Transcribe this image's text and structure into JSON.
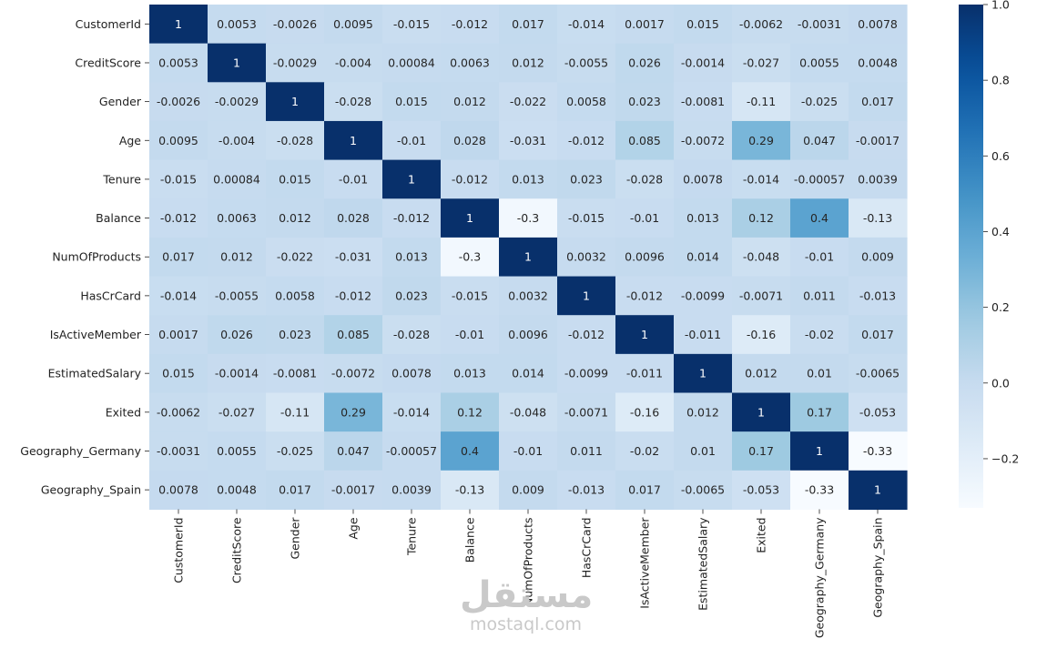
{
  "chart_data": {
    "type": "heatmap",
    "labels": [
      "CustomerId",
      "CreditScore",
      "Gender",
      "Age",
      "Tenure",
      "Balance",
      "NumOfProducts",
      "HasCrCard",
      "IsActiveMember",
      "EstimatedSalary",
      "Exited",
      "Geography_Germany",
      "Geography_Spain"
    ],
    "values": [
      [
        "1",
        "0.0053",
        "-0.0026",
        "0.0095",
        "-0.015",
        "-0.012",
        "0.017",
        "-0.014",
        "0.0017",
        "0.015",
        "-0.0062",
        "-0.0031",
        "0.0078"
      ],
      [
        "0.0053",
        "1",
        "-0.0029",
        "-0.004",
        "0.00084",
        "0.0063",
        "0.012",
        "-0.0055",
        "0.026",
        "-0.0014",
        "-0.027",
        "0.0055",
        "0.0048"
      ],
      [
        "-0.0026",
        "-0.0029",
        "1",
        "-0.028",
        "0.015",
        "0.012",
        "-0.022",
        "0.0058",
        "0.023",
        "-0.0081",
        "-0.11",
        "-0.025",
        "0.017"
      ],
      [
        "0.0095",
        "-0.004",
        "-0.028",
        "1",
        "-0.01",
        "0.028",
        "-0.031",
        "-0.012",
        "0.085",
        "-0.0072",
        "0.29",
        "0.047",
        "-0.0017"
      ],
      [
        "-0.015",
        "0.00084",
        "0.015",
        "-0.01",
        "1",
        "-0.012",
        "0.013",
        "0.023",
        "-0.028",
        "0.0078",
        "-0.014",
        "-0.00057",
        "0.0039"
      ],
      [
        "-0.012",
        "0.0063",
        "0.012",
        "0.028",
        "-0.012",
        "1",
        "-0.3",
        "-0.015",
        "-0.01",
        "0.013",
        "0.12",
        "0.4",
        "-0.13"
      ],
      [
        "0.017",
        "0.012",
        "-0.022",
        "-0.031",
        "0.013",
        "-0.3",
        "1",
        "0.0032",
        "0.0096",
        "0.014",
        "-0.048",
        "-0.01",
        "0.009"
      ],
      [
        "-0.014",
        "-0.0055",
        "0.0058",
        "-0.012",
        "0.023",
        "-0.015",
        "0.0032",
        "1",
        "-0.012",
        "-0.0099",
        "-0.0071",
        "0.011",
        "-0.013"
      ],
      [
        "0.0017",
        "0.026",
        "0.023",
        "0.085",
        "-0.028",
        "-0.01",
        "0.0096",
        "-0.012",
        "1",
        "-0.011",
        "-0.16",
        "-0.02",
        "0.017"
      ],
      [
        "0.015",
        "-0.0014",
        "-0.0081",
        "-0.0072",
        "0.0078",
        "0.013",
        "0.014",
        "-0.0099",
        "-0.011",
        "1",
        "0.012",
        "0.01",
        "-0.0065"
      ],
      [
        "-0.0062",
        "-0.027",
        "-0.11",
        "0.29",
        "-0.014",
        "0.12",
        "-0.048",
        "-0.0071",
        "-0.16",
        "0.012",
        "1",
        "0.17",
        "-0.053"
      ],
      [
        "-0.0031",
        "0.0055",
        "-0.025",
        "0.047",
        "-0.00057",
        "0.4",
        "-0.01",
        "0.011",
        "-0.02",
        "0.01",
        "0.17",
        "1",
        "-0.33"
      ],
      [
        "0.0078",
        "0.0048",
        "0.017",
        "-0.0017",
        "0.0039",
        "-0.13",
        "0.009",
        "-0.013",
        "0.017",
        "-0.0065",
        "-0.053",
        "-0.33",
        "1"
      ]
    ],
    "colormap": "Blues",
    "vmin": -0.33,
    "vmax": 1.0,
    "colorbar_ticks": [
      "1.0",
      "0.8",
      "0.6",
      "0.4",
      "0.2",
      "0.0",
      "−0.2"
    ],
    "annot": true
  },
  "watermark": {
    "logo_text": "مستقل",
    "site_text": "mostaql.com"
  }
}
